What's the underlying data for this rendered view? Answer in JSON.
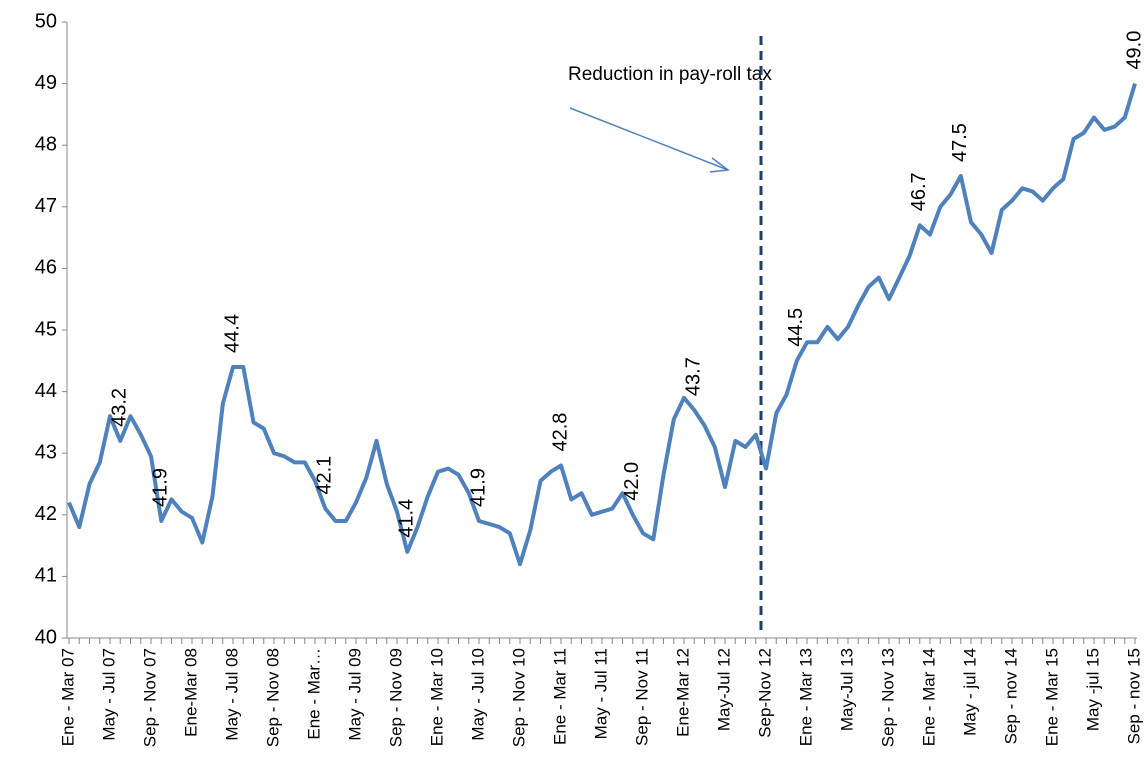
{
  "chart_data": {
    "type": "line",
    "annotation": "Reduction in pay-roll tax",
    "categories": [
      "Ene - Mar 07",
      null,
      null,
      null,
      "May - Jul 07",
      null,
      null,
      null,
      "Sep - Nov 07",
      null,
      null,
      null,
      "Ene-Mar 08",
      null,
      null,
      null,
      "May - Jul 08",
      null,
      null,
      null,
      "Sep - Nov 08",
      null,
      null,
      null,
      "Ene - Mar…",
      null,
      null,
      null,
      "May - Jul 09",
      null,
      null,
      null,
      "Sep - Nov 09",
      null,
      null,
      null,
      "Ene - Mar 10",
      null,
      null,
      null,
      "May - Jul 10",
      null,
      null,
      null,
      "Sep - Nov 10",
      null,
      null,
      null,
      "Ene - Mar 11",
      null,
      null,
      null,
      "May - Jul 11",
      null,
      null,
      null,
      "Sep - Nov 11",
      null,
      null,
      null,
      "Ene-Mar 12",
      null,
      null,
      null,
      "May-Jul 12",
      null,
      null,
      null,
      "Sep-Nov 12",
      null,
      null,
      null,
      "Ene - Mar 13",
      null,
      null,
      null,
      "May-Jul 13",
      null,
      null,
      null,
      "Sep - Nov 13",
      null,
      null,
      null,
      "Ene - Mar 14",
      null,
      null,
      null,
      "May - jul 14",
      null,
      null,
      null,
      "Sep - nov 14",
      null,
      null,
      null,
      "Ene - Mar 15",
      null,
      null,
      null,
      "May -jul 15",
      null,
      null,
      null,
      "Sep - nov 15"
    ],
    "values": [
      42.2,
      41.8,
      42.5,
      42.85,
      43.6,
      43.2,
      43.6,
      43.3,
      42.95,
      41.9,
      42.25,
      42.05,
      41.95,
      41.55,
      42.3,
      43.8,
      44.4,
      44.4,
      43.5,
      43.4,
      43.0,
      42.95,
      42.85,
      42.85,
      42.55,
      42.1,
      41.9,
      41.9,
      42.2,
      42.6,
      43.2,
      42.5,
      42.05,
      41.4,
      41.8,
      42.3,
      42.7,
      42.75,
      42.65,
      42.35,
      41.9,
      41.85,
      41.8,
      41.7,
      41.2,
      41.75,
      42.55,
      42.7,
      42.8,
      42.25,
      42.35,
      42.0,
      42.05,
      42.1,
      42.35,
      42.0,
      41.7,
      41.6,
      42.65,
      43.55,
      43.9,
      43.7,
      43.45,
      43.1,
      42.45,
      43.2,
      43.1,
      43.3,
      42.75,
      43.65,
      43.95,
      44.5,
      44.8,
      44.8,
      45.05,
      44.85,
      45.05,
      45.4,
      45.7,
      45.85,
      45.5,
      45.85,
      46.2,
      46.7,
      46.55,
      47.0,
      47.2,
      47.5,
      46.75,
      46.55,
      46.25,
      46.95,
      47.1,
      47.3,
      47.25,
      47.1,
      47.3,
      47.45,
      48.1,
      48.2,
      48.45,
      48.25,
      48.3,
      48.45,
      49.0
    ],
    "value_labels": [
      null,
      null,
      null,
      null,
      null,
      "43.2",
      null,
      null,
      null,
      "41.9",
      null,
      null,
      null,
      null,
      null,
      null,
      "44.4",
      null,
      null,
      null,
      null,
      null,
      null,
      null,
      null,
      "42.1",
      null,
      null,
      null,
      null,
      null,
      null,
      null,
      "41.4",
      null,
      null,
      null,
      null,
      null,
      null,
      "41.9",
      null,
      null,
      null,
      null,
      null,
      null,
      null,
      "42.8",
      null,
      null,
      null,
      null,
      null,
      null,
      "42.0",
      null,
      null,
      null,
      null,
      null,
      "43.7",
      null,
      null,
      null,
      null,
      null,
      null,
      null,
      null,
      null,
      "44.5",
      null,
      null,
      null,
      null,
      null,
      null,
      null,
      null,
      null,
      null,
      null,
      "46.7",
      null,
      null,
      null,
      "47.5",
      null,
      null,
      null,
      null,
      null,
      null,
      null,
      null,
      null,
      null,
      null,
      null,
      null,
      null,
      null,
      null,
      "49.0"
    ],
    "color": "#4f81bd",
    "ylim": [
      40,
      50
    ],
    "yticks": [
      40,
      41,
      42,
      43,
      44,
      45,
      46,
      47,
      48,
      49,
      50
    ],
    "grid": false
  }
}
